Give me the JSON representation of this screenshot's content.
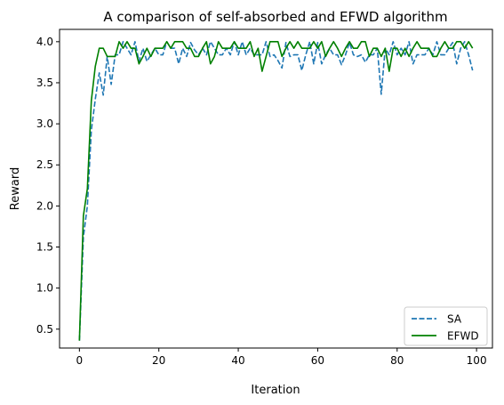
{
  "chart_data": {
    "type": "line",
    "title": "A comparison of self-absorbed and EFWD algorithm",
    "xlabel": "Iteration",
    "ylabel": "Reward",
    "xlim": [
      -5,
      104
    ],
    "ylim": [
      0.27,
      4.15
    ],
    "xticks": [
      0,
      20,
      40,
      60,
      80,
      100
    ],
    "yticks": [
      0.5,
      1.0,
      1.5,
      2.0,
      2.5,
      3.0,
      3.5,
      4.0
    ],
    "xtick_labels": [
      "0",
      "20",
      "40",
      "60",
      "80",
      "100"
    ],
    "ytick_labels": [
      "0.5",
      "1.0",
      "1.5",
      "2.0",
      "2.5",
      "3.0",
      "3.5",
      "4.0"
    ],
    "legend_position": "lower-right",
    "grid": false,
    "x": [
      0,
      1,
      2,
      3,
      4,
      5,
      6,
      7,
      8,
      9,
      10,
      11,
      12,
      13,
      14,
      15,
      16,
      17,
      18,
      19,
      20,
      21,
      22,
      23,
      24,
      25,
      26,
      27,
      28,
      29,
      30,
      31,
      32,
      33,
      34,
      35,
      36,
      37,
      38,
      39,
      40,
      41,
      42,
      43,
      44,
      45,
      46,
      47,
      48,
      49,
      50,
      51,
      52,
      53,
      54,
      55,
      56,
      57,
      58,
      59,
      60,
      61,
      62,
      63,
      64,
      65,
      66,
      67,
      68,
      69,
      70,
      71,
      72,
      73,
      74,
      75,
      76,
      77,
      78,
      79,
      80,
      81,
      82,
      83,
      84,
      85,
      86,
      87,
      88,
      89,
      90,
      91,
      92,
      93,
      94,
      95,
      96,
      97,
      98,
      99
    ],
    "series": [
      {
        "name": "SA",
        "color": "#1f77b4",
        "style": "dashed",
        "values": [
          0.36,
          1.62,
          2.0,
          2.92,
          3.3,
          3.62,
          3.35,
          3.82,
          3.48,
          3.84,
          3.84,
          4.0,
          3.92,
          3.84,
          4.0,
          3.76,
          3.92,
          3.76,
          3.84,
          3.92,
          3.84,
          3.84,
          4.0,
          3.92,
          3.92,
          3.73,
          3.92,
          3.82,
          3.99,
          3.9,
          3.84,
          3.92,
          3.84,
          4.0,
          3.92,
          3.84,
          3.84,
          3.92,
          3.84,
          4.0,
          3.84,
          4.0,
          3.84,
          3.92,
          3.84,
          3.84,
          3.84,
          4.0,
          3.82,
          3.84,
          3.77,
          3.68,
          3.99,
          3.82,
          3.84,
          3.84,
          3.65,
          3.84,
          4.0,
          3.73,
          3.99,
          3.73,
          3.84,
          3.92,
          3.84,
          3.84,
          3.72,
          3.84,
          3.99,
          3.84,
          3.82,
          3.84,
          3.75,
          3.84,
          3.84,
          3.92,
          3.36,
          3.92,
          3.84,
          4.0,
          3.84,
          3.92,
          3.84,
          4.0,
          3.73,
          3.84,
          3.84,
          3.84,
          3.92,
          3.84,
          4.0,
          3.84,
          3.84,
          3.92,
          3.99,
          3.73,
          3.92,
          4.0,
          3.84,
          3.65
        ]
      },
      {
        "name": "EFWD",
        "color": "#008000",
        "style": "solid",
        "values": [
          0.36,
          1.88,
          2.21,
          3.28,
          3.7,
          3.92,
          3.92,
          3.82,
          3.82,
          3.82,
          4.0,
          3.92,
          4.0,
          3.92,
          3.92,
          3.73,
          3.82,
          3.92,
          3.82,
          3.92,
          3.92,
          3.92,
          4.0,
          3.92,
          4.0,
          4.0,
          4.0,
          3.92,
          3.92,
          3.82,
          3.82,
          3.92,
          4.0,
          3.73,
          3.82,
          4.0,
          3.92,
          3.92,
          3.92,
          4.0,
          3.92,
          3.92,
          3.92,
          4.0,
          3.82,
          3.92,
          3.64,
          3.82,
          4.0,
          4.0,
          4.0,
          3.82,
          3.92,
          4.0,
          3.92,
          4.0,
          3.92,
          3.92,
          3.92,
          4.0,
          3.92,
          4.0,
          3.82,
          3.92,
          4.0,
          3.92,
          3.82,
          3.92,
          4.0,
          3.92,
          3.92,
          4.0,
          4.0,
          3.82,
          3.92,
          3.92,
          3.82,
          3.92,
          3.64,
          3.92,
          3.92,
          3.82,
          3.92,
          3.82,
          3.92,
          4.0,
          3.92,
          3.92,
          3.92,
          3.82,
          3.82,
          3.92,
          4.0,
          3.92,
          3.92,
          4.0,
          4.0,
          3.92,
          4.0,
          3.92
        ]
      }
    ]
  }
}
